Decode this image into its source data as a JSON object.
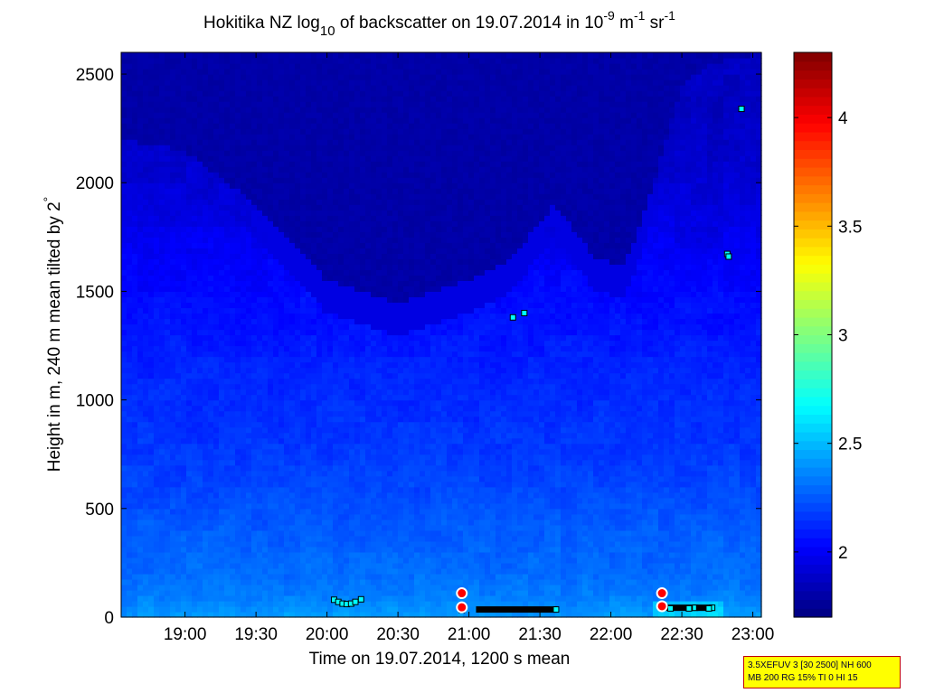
{
  "chart_data": {
    "type": "heatmap",
    "title_parts": {
      "prefix": "Hokitika NZ log",
      "sub": "10",
      "mid": " of backscatter on 19.07.2014 in 10",
      "exp1": "-9",
      "unit1": " m",
      "exp2": "-1",
      "unit2": " sr",
      "exp3": "-1"
    },
    "xlabel": "Time on 19.07.2014, 1200 s mean",
    "ylabel_text": "Height in m, 240 m mean tilted by 2",
    "ylabel_degree": "°",
    "x_range_hours": [
      18.55,
      23.06
    ],
    "x_ticks": [
      {
        "value": 19.0,
        "label": "19:00"
      },
      {
        "value": 19.5,
        "label": "19:30"
      },
      {
        "value": 20.0,
        "label": "20:00"
      },
      {
        "value": 20.5,
        "label": "20:30"
      },
      {
        "value": 21.0,
        "label": "21:00"
      },
      {
        "value": 21.5,
        "label": "21:30"
      },
      {
        "value": 22.0,
        "label": "22:00"
      },
      {
        "value": 22.5,
        "label": "22:30"
      },
      {
        "value": 23.0,
        "label": "23:00"
      }
    ],
    "y_range": [
      0,
      2600
    ],
    "y_ticks": [
      {
        "value": 0,
        "label": "0"
      },
      {
        "value": 500,
        "label": "500"
      },
      {
        "value": 1000,
        "label": "1000"
      },
      {
        "value": 1500,
        "label": "1500"
      },
      {
        "value": 2000,
        "label": "2000"
      },
      {
        "value": 2500,
        "label": "2500"
      }
    ],
    "colorbar": {
      "range": [
        1.7,
        4.3
      ],
      "colormap": "jet",
      "ticks": [
        {
          "value": 2.0,
          "label": "2"
        },
        {
          "value": 2.5,
          "label": "2.5"
        },
        {
          "value": 3.0,
          "label": "3"
        },
        {
          "value": 3.5,
          "label": "3.5"
        },
        {
          "value": 4.0,
          "label": "4"
        }
      ]
    },
    "backscatter_profile": {
      "heights_m": [
        0,
        100,
        200,
        400,
        600,
        800,
        1000,
        1200,
        1400,
        1600,
        1800,
        2000,
        2200,
        2600
      ],
      "log_values": [
        2.42,
        2.34,
        2.3,
        2.26,
        2.2,
        2.16,
        2.13,
        2.1,
        2.06,
        2.02,
        1.96,
        1.92,
        1.88,
        1.85
      ]
    },
    "dark_top_boundary": {
      "times_hours": [
        18.55,
        19.0,
        19.5,
        20.0,
        20.5,
        21.0,
        21.3,
        21.6,
        21.9,
        22.1,
        22.3,
        22.5,
        22.7,
        23.06
      ],
      "heights_m": [
        2200,
        2150,
        1900,
        1550,
        1450,
        1550,
        1650,
        1900,
        1650,
        1620,
        2000,
        2450,
        2550,
        2600
      ]
    },
    "cloud_markers": [
      {
        "t": 20.05,
        "h": 80
      },
      {
        "t": 20.08,
        "h": 70
      },
      {
        "t": 20.11,
        "h": 62
      },
      {
        "t": 20.14,
        "h": 60
      },
      {
        "t": 20.17,
        "h": 62
      },
      {
        "t": 20.2,
        "h": 70
      },
      {
        "t": 20.24,
        "h": 82
      },
      {
        "t": 20.95,
        "h": 33
      },
      {
        "t": 21.31,
        "h": 1380
      },
      {
        "t": 21.39,
        "h": 1400
      },
      {
        "t": 22.42,
        "h": 40
      },
      {
        "t": 22.55,
        "h": 40
      },
      {
        "t": 22.69,
        "h": 40
      },
      {
        "t": 22.82,
        "h": 1672
      },
      {
        "t": 22.83,
        "h": 1660
      },
      {
        "t": 22.92,
        "h": 2340
      }
    ],
    "cloud_bars": [
      {
        "t_start": 21.05,
        "t_end": 21.62,
        "h": 35
      },
      {
        "t_start": 22.38,
        "t_end": 22.6,
        "h": 43
      },
      {
        "t_start": 22.6,
        "t_end": 22.72,
        "h": 43
      }
    ],
    "circle_markers": [
      {
        "t": 20.95,
        "h": 110
      },
      {
        "t": 20.95,
        "h": 45
      },
      {
        "t": 22.36,
        "h": 110
      },
      {
        "t": 22.36,
        "h": 50
      }
    ]
  },
  "info_box": {
    "line1": "3.5XEFUV 3 [30 2500] NH 600",
    "line2": "MB 200 RG 15% TI 0 HI 15"
  }
}
